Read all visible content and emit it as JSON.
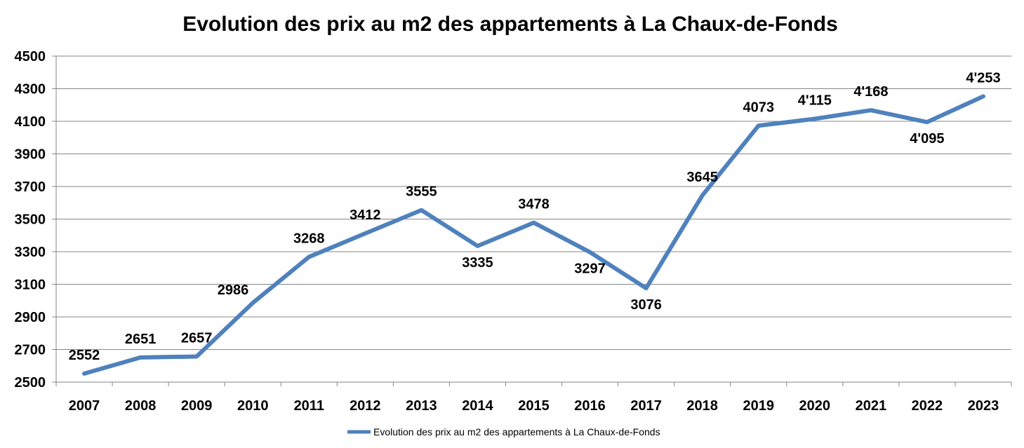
{
  "colors": {
    "series": "#4F81BD",
    "grid": "#868686",
    "axis": "#868686",
    "text": "#000000",
    "background": "#FFFFFF"
  },
  "chart_data": {
    "type": "line",
    "title": "Evolution des prix au m2 des appartements à La Chaux-de-Fonds",
    "xlabel": "",
    "ylabel": "",
    "ylim": [
      2500,
      4500
    ],
    "ytick_step": 200,
    "yticks": [
      "2500",
      "2700",
      "2900",
      "3100",
      "3300",
      "3500",
      "3700",
      "3900",
      "4100",
      "4300",
      "4500"
    ],
    "grid": true,
    "legend_position": "bottom-center",
    "categories": [
      "2007",
      "2008",
      "2009",
      "2010",
      "2011",
      "2012",
      "2013",
      "2014",
      "2015",
      "2016",
      "2017",
      "2018",
      "2019",
      "2020",
      "2021",
      "2022",
      "2023"
    ],
    "series": [
      {
        "name": "Evolution des prix au m2 des appartements à La Chaux-de-Fonds",
        "values": [
          2552,
          2651,
          2657,
          2986,
          3268,
          3412,
          3555,
          3335,
          3478,
          3297,
          3076,
          3645,
          4073,
          4115,
          4168,
          4095,
          4253
        ],
        "data_labels": [
          "2552",
          "2651",
          "2657",
          "2986",
          "3268",
          "3412",
          "3555",
          "3335",
          "3478",
          "3297",
          "3076",
          "3645",
          "4073",
          "4'115",
          "4'168",
          "4'095",
          "4'253"
        ],
        "label_positions": [
          "above",
          "above",
          "above",
          "left",
          "above",
          "above",
          "above",
          "below",
          "above",
          "below",
          "below",
          "above",
          "above",
          "above",
          "above",
          "below",
          "above"
        ]
      }
    ]
  }
}
